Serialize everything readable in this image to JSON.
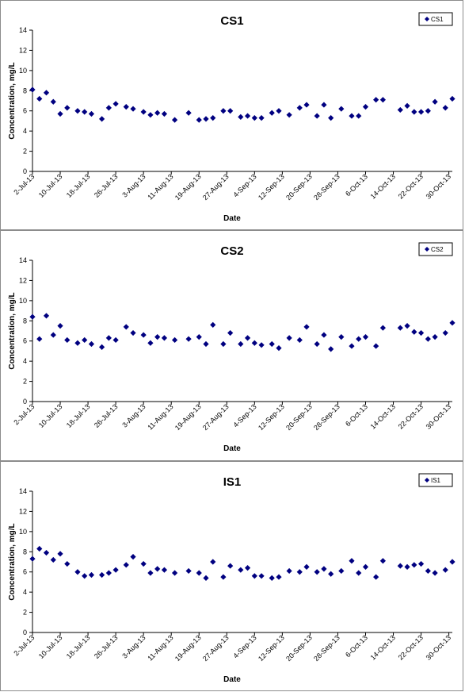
{
  "marker_color": "#000080",
  "x_ticks": [
    "2-Jul-13",
    "10-Jul-13",
    "18-Jul-13",
    "26-Jul-13",
    "3-Aug-13",
    "11-Aug-13",
    "19-Aug-13",
    "27-Aug-13",
    "4-Sep-13",
    "12-Sep-13",
    "20-Sep-13",
    "28-Sep-13",
    "6-Oct-13",
    "14-Oct-13",
    "22-Oct-13",
    "30-Oct-13"
  ],
  "chart_data": [
    {
      "type": "scatter",
      "title": "CS1",
      "xlabel": "Date",
      "ylabel": "Concentration, mg/L",
      "ylim": [
        0,
        14
      ],
      "yticks": [
        0,
        2,
        4,
        6,
        8,
        10,
        12,
        14
      ],
      "xlim": [
        "2013-07-02",
        "2013-10-31"
      ],
      "grid": false,
      "legend": "top-right",
      "series": [
        {
          "name": "CS1",
          "x": [
            "2013-07-02",
            "2013-07-04",
            "2013-07-06",
            "2013-07-08",
            "2013-07-10",
            "2013-07-12",
            "2013-07-15",
            "2013-07-17",
            "2013-07-19",
            "2013-07-22",
            "2013-07-24",
            "2013-07-26",
            "2013-07-29",
            "2013-07-31",
            "2013-08-03",
            "2013-08-05",
            "2013-08-07",
            "2013-08-09",
            "2013-08-12",
            "2013-08-16",
            "2013-08-19",
            "2013-08-21",
            "2013-08-23",
            "2013-08-26",
            "2013-08-28",
            "2013-08-31",
            "2013-09-02",
            "2013-09-04",
            "2013-09-06",
            "2013-09-09",
            "2013-09-11",
            "2013-09-14",
            "2013-09-17",
            "2013-09-19",
            "2013-09-22",
            "2013-09-24",
            "2013-09-26",
            "2013-09-29",
            "2013-10-02",
            "2013-10-04",
            "2013-10-06",
            "2013-10-09",
            "2013-10-11",
            "2013-10-16",
            "2013-10-18",
            "2013-10-20",
            "2013-10-22",
            "2013-10-24",
            "2013-10-26",
            "2013-10-29",
            "2013-10-31"
          ],
          "y": [
            8.1,
            7.2,
            7.8,
            6.9,
            5.7,
            6.3,
            6.0,
            5.9,
            5.7,
            5.2,
            6.3,
            6.7,
            6.4,
            6.2,
            5.9,
            5.6,
            5.8,
            5.7,
            5.1,
            5.8,
            5.1,
            5.2,
            5.3,
            6.0,
            6.0,
            5.4,
            5.5,
            5.3,
            5.3,
            5.8,
            6.0,
            5.6,
            6.3,
            6.6,
            5.5,
            6.6,
            5.3,
            6.2,
            5.5,
            5.5,
            6.4,
            7.1,
            7.1,
            6.1,
            6.5,
            5.9,
            5.9,
            6.0,
            6.9,
            6.3,
            7.2
          ]
        }
      ]
    },
    {
      "type": "scatter",
      "title": "CS2",
      "xlabel": "Date",
      "ylabel": "Concentration, mg/L",
      "ylim": [
        0,
        14
      ],
      "yticks": [
        0,
        2,
        4,
        6,
        8,
        10,
        12,
        14
      ],
      "xlim": [
        "2013-07-02",
        "2013-10-31"
      ],
      "grid": false,
      "legend": "top-right",
      "series": [
        {
          "name": "CS2",
          "x": [
            "2013-07-02",
            "2013-07-04",
            "2013-07-06",
            "2013-07-08",
            "2013-07-10",
            "2013-07-12",
            "2013-07-15",
            "2013-07-17",
            "2013-07-19",
            "2013-07-22",
            "2013-07-24",
            "2013-07-26",
            "2013-07-29",
            "2013-07-31",
            "2013-08-03",
            "2013-08-05",
            "2013-08-07",
            "2013-08-09",
            "2013-08-12",
            "2013-08-16",
            "2013-08-19",
            "2013-08-21",
            "2013-08-23",
            "2013-08-26",
            "2013-08-28",
            "2013-08-31",
            "2013-09-02",
            "2013-09-04",
            "2013-09-06",
            "2013-09-09",
            "2013-09-11",
            "2013-09-14",
            "2013-09-17",
            "2013-09-19",
            "2013-09-22",
            "2013-09-24",
            "2013-09-26",
            "2013-09-29",
            "2013-10-02",
            "2013-10-04",
            "2013-10-06",
            "2013-10-09",
            "2013-10-11",
            "2013-10-16",
            "2013-10-18",
            "2013-10-20",
            "2013-10-22",
            "2013-10-24",
            "2013-10-26",
            "2013-10-29",
            "2013-10-31"
          ],
          "y": [
            8.4,
            6.2,
            8.5,
            6.6,
            7.5,
            6.1,
            5.8,
            6.1,
            5.7,
            5.4,
            6.3,
            6.1,
            7.4,
            6.8,
            6.6,
            5.8,
            6.4,
            6.3,
            6.1,
            6.2,
            6.4,
            5.7,
            7.6,
            5.7,
            6.8,
            5.7,
            6.3,
            5.8,
            5.6,
            5.7,
            5.3,
            6.3,
            6.1,
            7.4,
            5.7,
            6.6,
            5.2,
            6.4,
            5.5,
            6.2,
            6.4,
            5.5,
            7.3,
            7.3,
            7.5,
            6.9,
            6.8,
            6.2,
            6.4,
            6.8,
            7.8
          ]
        }
      ]
    },
    {
      "type": "scatter",
      "title": "IS1",
      "xlabel": "Date",
      "ylabel": "Concentration, mg/L",
      "ylim": [
        0,
        14
      ],
      "yticks": [
        0,
        2,
        4,
        6,
        8,
        10,
        12,
        14
      ],
      "xlim": [
        "2013-07-02",
        "2013-10-31"
      ],
      "grid": false,
      "legend": "top-right",
      "series": [
        {
          "name": "IS1",
          "x": [
            "2013-07-02",
            "2013-07-04",
            "2013-07-06",
            "2013-07-08",
            "2013-07-10",
            "2013-07-12",
            "2013-07-15",
            "2013-07-17",
            "2013-07-19",
            "2013-07-22",
            "2013-07-24",
            "2013-07-26",
            "2013-07-29",
            "2013-07-31",
            "2013-08-03",
            "2013-08-05",
            "2013-08-07",
            "2013-08-09",
            "2013-08-12",
            "2013-08-16",
            "2013-08-19",
            "2013-08-21",
            "2013-08-23",
            "2013-08-26",
            "2013-08-28",
            "2013-08-31",
            "2013-09-02",
            "2013-09-04",
            "2013-09-06",
            "2013-09-09",
            "2013-09-11",
            "2013-09-14",
            "2013-09-17",
            "2013-09-19",
            "2013-09-22",
            "2013-09-24",
            "2013-09-26",
            "2013-09-29",
            "2013-10-02",
            "2013-10-04",
            "2013-10-06",
            "2013-10-09",
            "2013-10-11",
            "2013-10-16",
            "2013-10-18",
            "2013-10-20",
            "2013-10-22",
            "2013-10-24",
            "2013-10-26",
            "2013-10-29",
            "2013-10-31"
          ],
          "y": [
            7.3,
            8.3,
            7.9,
            7.2,
            7.8,
            6.8,
            6.0,
            5.6,
            5.7,
            5.7,
            5.9,
            6.2,
            6.7,
            7.5,
            6.8,
            5.9,
            6.3,
            6.2,
            5.9,
            6.1,
            5.9,
            5.4,
            7.0,
            5.5,
            6.6,
            6.2,
            6.4,
            5.6,
            5.6,
            5.4,
            5.5,
            6.1,
            6.0,
            6.5,
            6.0,
            6.3,
            5.8,
            6.1,
            7.1,
            5.9,
            6.5,
            5.5,
            7.1,
            6.6,
            6.5,
            6.7,
            6.8,
            6.1,
            5.9,
            6.2,
            7.0
          ]
        }
      ]
    }
  ]
}
